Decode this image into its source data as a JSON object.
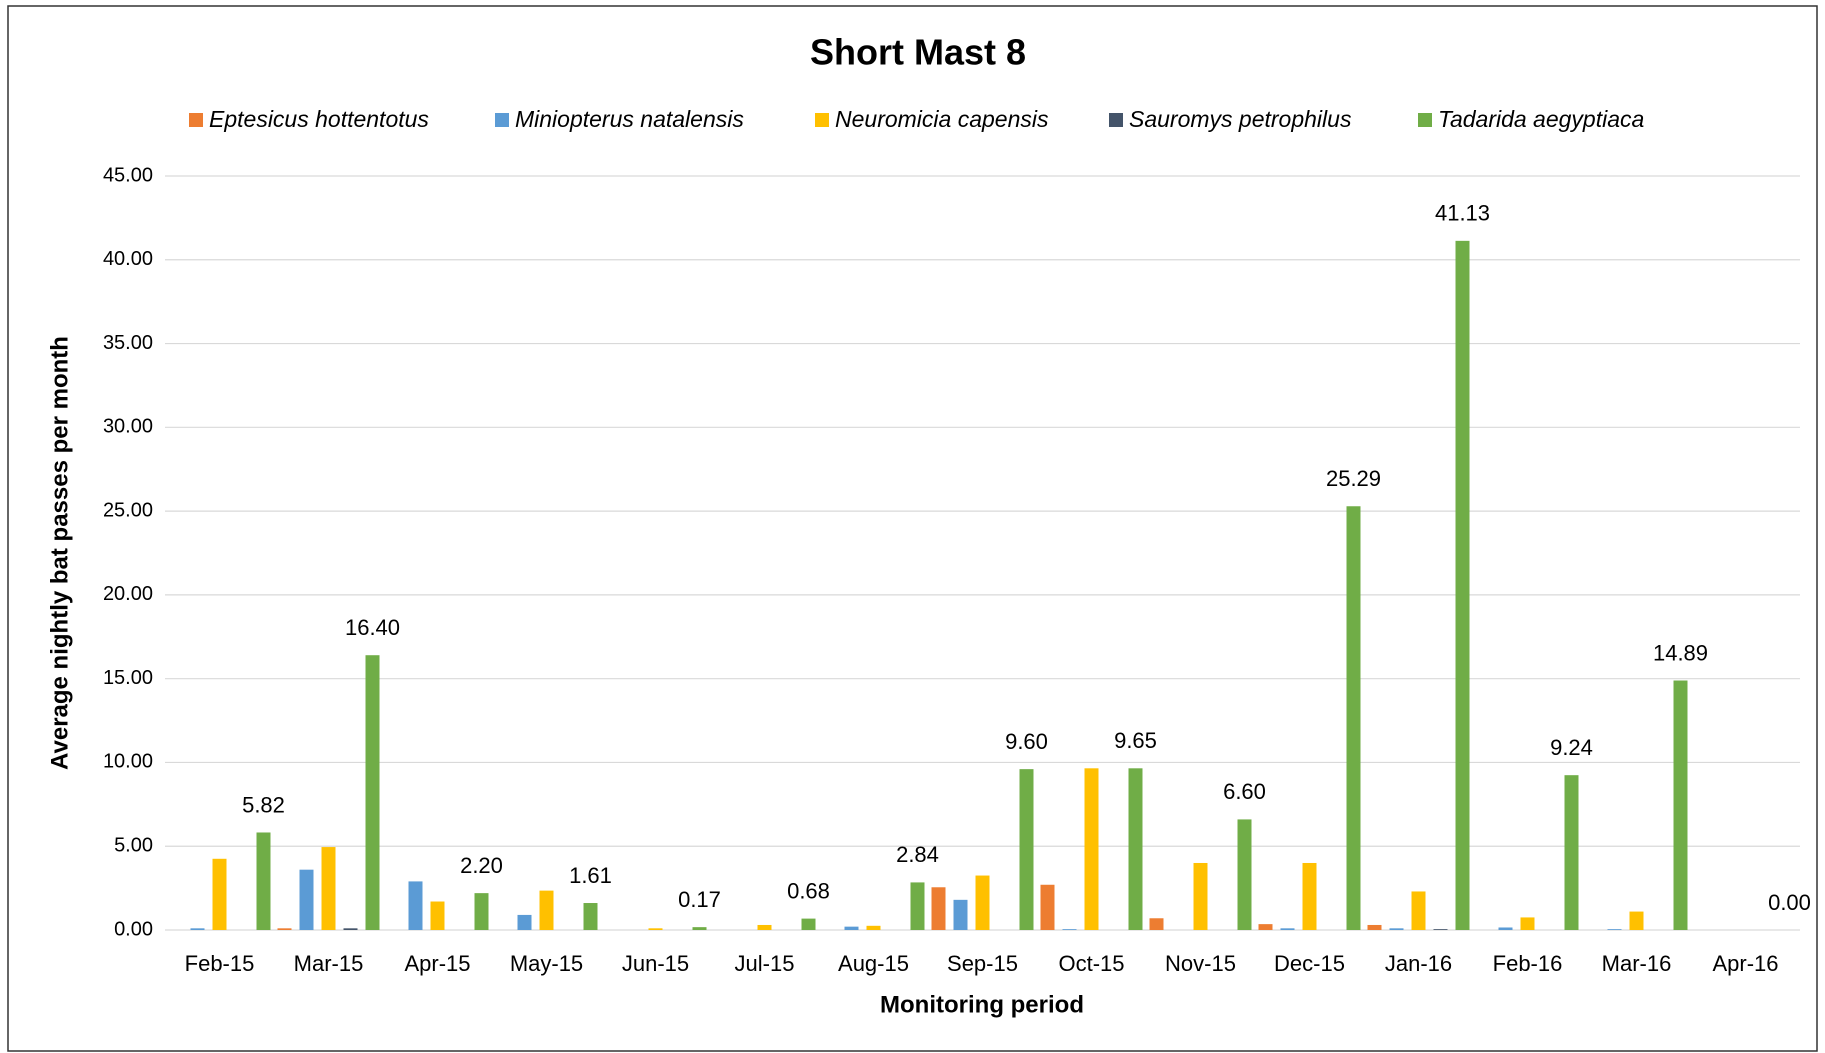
{
  "chart_data": {
    "type": "bar",
    "title": "Short Mast 8",
    "xlabel": "Monitoring period",
    "ylabel": "Average nightly bat passes per month",
    "categories": [
      "Feb-15",
      "Mar-15",
      "Apr-15",
      "May-15",
      "Jun-15",
      "Jul-15",
      "Aug-15",
      "Sep-15",
      "Oct-15",
      "Nov-15",
      "Dec-15",
      "Jan-16",
      "Feb-16",
      "Mar-16",
      "Apr-16"
    ],
    "series": [
      {
        "name": "Eptesicus hottentotus",
        "color": "#ed7d31",
        "values": [
          0,
          0.1,
          0,
          0,
          0,
          0,
          0,
          2.55,
          2.7,
          0.7,
          0.35,
          0.3,
          0,
          0,
          0
        ]
      },
      {
        "name": "Miniopterus natalensis",
        "color": "#5b9bd5",
        "values": [
          0.1,
          3.6,
          2.9,
          0.9,
          0,
          0,
          0.2,
          1.8,
          0.05,
          0,
          0.1,
          0.1,
          0.15,
          0.05,
          0
        ]
      },
      {
        "name": "Neuromicia capensis",
        "color": "#ffc000",
        "values": [
          4.25,
          4.95,
          1.7,
          2.35,
          0.1,
          0.3,
          0.25,
          3.25,
          9.65,
          4.0,
          4.0,
          2.3,
          0.75,
          1.1,
          0
        ]
      },
      {
        "name": "Sauromys petrophilus",
        "color": "#44546a",
        "values": [
          0,
          0.1,
          0,
          0,
          0,
          0,
          0,
          0,
          0,
          0,
          0,
          0.05,
          0,
          0,
          0
        ]
      },
      {
        "name": "Tadarida aegyptiaca",
        "color": "#70ad47",
        "values": [
          5.82,
          16.4,
          2.2,
          1.61,
          0.17,
          0.68,
          2.84,
          9.6,
          9.65,
          6.6,
          25.29,
          41.13,
          9.24,
          14.89,
          0
        ],
        "value_labels": [
          "5.82",
          "16.40",
          "2.20",
          "1.61",
          "0.17",
          "0.68",
          "2.84",
          "9.60",
          "9.65",
          "6.60",
          "25.29",
          "41.13",
          "9.24",
          "14.89",
          "0.00"
        ]
      }
    ],
    "ylim": [
      0,
      45
    ],
    "yticks": [
      {
        "value": 0,
        "label": "0.00"
      },
      {
        "value": 5,
        "label": "5.00"
      },
      {
        "value": 10,
        "label": "10.00"
      },
      {
        "value": 15,
        "label": "15.00"
      },
      {
        "value": 20,
        "label": "20.00"
      },
      {
        "value": 25,
        "label": "25.00"
      },
      {
        "value": 30,
        "label": "30.00"
      },
      {
        "value": 35,
        "label": "35.00"
      },
      {
        "value": 40,
        "label": "40.00"
      },
      {
        "value": 45,
        "label": "45.00"
      }
    ],
    "grid": true,
    "legend": "top"
  }
}
